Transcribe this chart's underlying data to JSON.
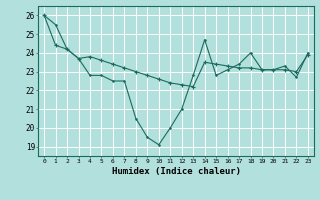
{
  "title": "",
  "xlabel": "Humidex (Indice chaleur)",
  "background_color": "#b2e0dc",
  "grid_color": "#ffffff",
  "line_color": "#1a6b5e",
  "x_ticks": [
    0,
    1,
    2,
    3,
    4,
    5,
    6,
    7,
    8,
    9,
    10,
    11,
    12,
    13,
    14,
    15,
    16,
    17,
    18,
    19,
    20,
    21,
    22,
    23
  ],
  "y_ticks": [
    19,
    20,
    21,
    22,
    23,
    24,
    25,
    26
  ],
  "ylim": [
    18.5,
    26.5
  ],
  "xlim": [
    -0.5,
    23.5
  ],
  "series1": [
    26.0,
    25.5,
    24.2,
    23.7,
    22.8,
    22.8,
    22.5,
    22.5,
    20.5,
    19.5,
    19.1,
    20.0,
    21.0,
    22.8,
    24.7,
    22.8,
    23.1,
    23.4,
    24.0,
    23.1,
    23.1,
    23.3,
    22.7,
    24.0
  ],
  "series2": [
    26.0,
    24.4,
    24.2,
    23.7,
    23.8,
    23.6,
    23.4,
    23.2,
    23.0,
    22.8,
    22.6,
    22.4,
    22.3,
    22.2,
    23.5,
    23.4,
    23.3,
    23.2,
    23.2,
    23.1,
    23.1,
    23.1,
    23.0,
    23.9
  ]
}
